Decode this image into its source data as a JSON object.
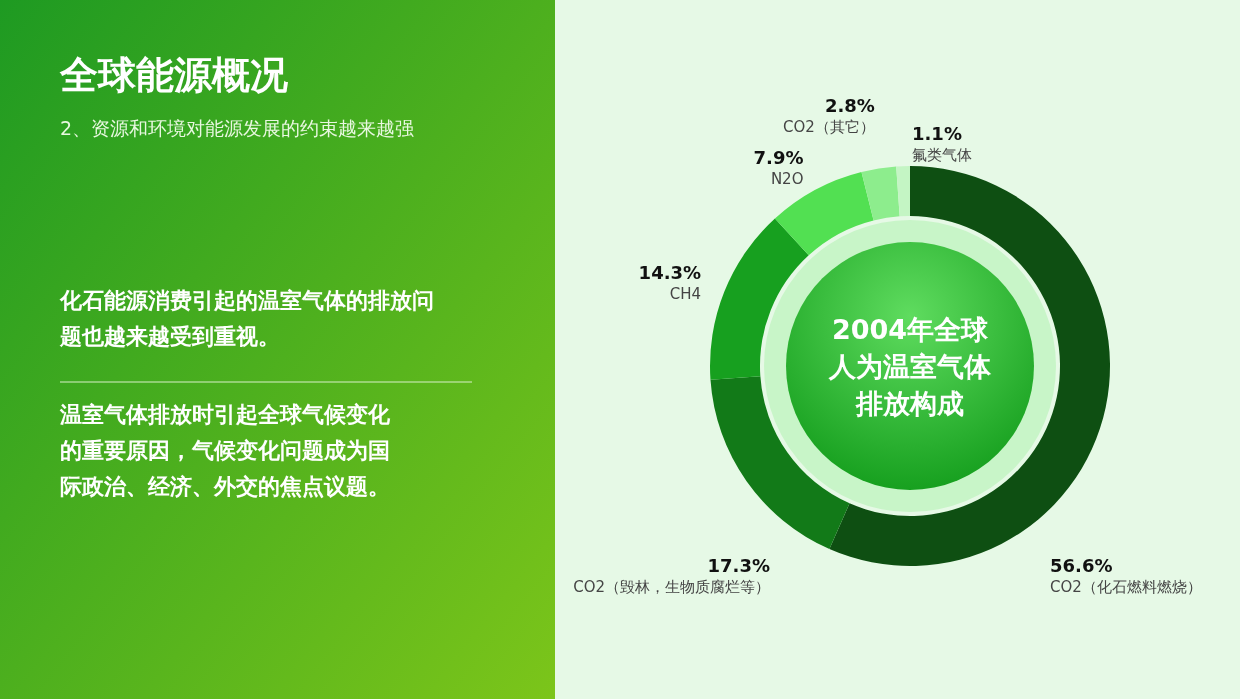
{
  "chart_data": {
    "type": "donut",
    "title": "2004年全球人为温室气体排放构成",
    "categories": [
      "CO2（化石燃料燃烧）",
      "CO2（毁林，生物质腐烂等）",
      "CH4",
      "N2O",
      "CO2（其它）",
      "氟类气体"
    ],
    "values": [
      56.6,
      17.3,
      14.3,
      7.9,
      2.8,
      1.1
    ],
    "value_labels": [
      "56.6%",
      "17.3%",
      "14.3%",
      "7.9%",
      "2.8%",
      "1.1%"
    ],
    "colors": [
      "#0e4f12",
      "#127a18",
      "#17a01f",
      "#52e052",
      "#8ded8d",
      "#c4f5c4"
    ],
    "annotations": [
      "全球能源概况",
      "2、资源和环境对能源发展的约束越来越强",
      "化石能源消费引起的温室气体的排放问题也越来越受到重视。",
      "温室气体排放时引起全球气候变化的重要原因，气候变化问题成为国际政治、经济、外交的焦点议题。"
    ]
  }
}
